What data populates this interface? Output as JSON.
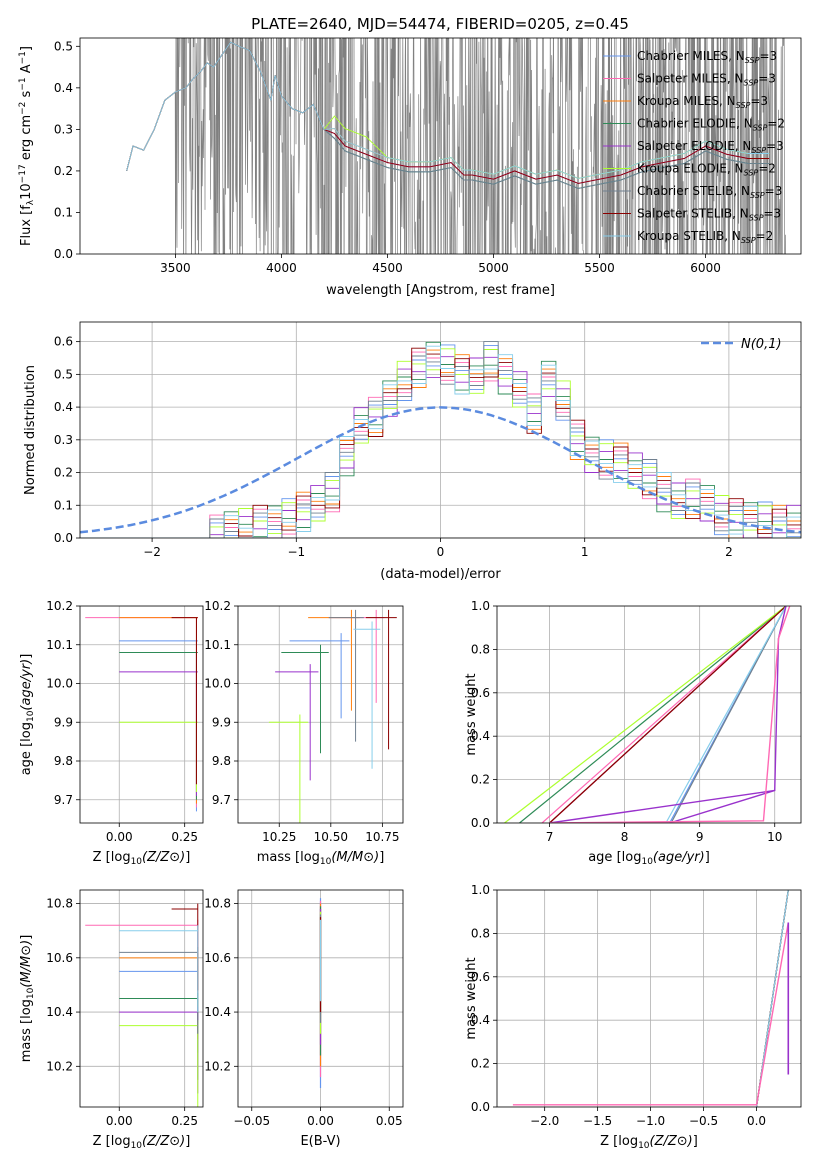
{
  "title": "PLATE=2640, MJD=54474, FIBERID=0205, z=0.45",
  "models": [
    {
      "name": "Chabrier MILES, N_SSP=3",
      "label_main": "Chabrier MILES, N",
      "label_sub": "SSP",
      "label_tail": "=3",
      "color": "#6495ED"
    },
    {
      "name": "Salpeter MILES, N_SSP=3",
      "label_main": "Salpeter MILES, N",
      "label_sub": "SSP",
      "label_tail": "=3",
      "color": "#FF69B4"
    },
    {
      "name": "Kroupa MILES, N_SSP=3",
      "label_main": "Kroupa MILES, N",
      "label_sub": "SSP",
      "label_tail": "=3",
      "color": "#FF7F0E"
    },
    {
      "name": "Chabrier ELODIE, N_SSP=2",
      "label_main": "Chabrier ELODIE, N",
      "label_sub": "SSP",
      "label_tail": "=2",
      "color": "#2E8B57"
    },
    {
      "name": "Salpeter ELODIE, N_SSP=3",
      "label_main": "Salpeter ELODIE, N",
      "label_sub": "SSP",
      "label_tail": "=3",
      "color": "#9932CC"
    },
    {
      "name": "Kroupa ELODIE, N_SSP=2",
      "label_main": "Kroupa ELODIE, N",
      "label_sub": "SSP",
      "label_tail": "=2",
      "color": "#ADFF2F"
    },
    {
      "name": "Chabrier STELIB, N_SSP=3",
      "label_main": "Chabrier STELIB, N",
      "label_sub": "SSP",
      "label_tail": "=3",
      "color": "#708090"
    },
    {
      "name": "Salpeter STELIB, N_SSP=3",
      "label_main": "Salpeter STELIB, N",
      "label_sub": "SSP",
      "label_tail": "=3",
      "color": "#8B0000"
    },
    {
      "name": "Kroupa STELIB, N_SSP=2",
      "label_main": "Kroupa STELIB, N",
      "label_sub": "SSP",
      "label_tail": "=2",
      "color": "#87CEEB"
    }
  ],
  "chart_data": [
    {
      "type": "line",
      "id": "spectrum",
      "xlabel": "wavelength [Angstrom, rest frame]",
      "ylabel": "Flux [f_λ 10^-17 erg cm^-2 s^-1 A^-1]",
      "ylabel_parts": {
        "a": "Flux [f",
        "b": "λ",
        "c": "10",
        "d": "−17",
        "e": " erg cm",
        "f": "−2",
        "g": " s",
        "h": "−1",
        "i": " A",
        "j": "−1",
        "k": "]"
      },
      "xlim": [
        3050,
        6450
      ],
      "ylim": [
        0,
        0.52
      ],
      "xticks": [
        3500,
        4000,
        4500,
        5000,
        5500,
        6000
      ],
      "yticks": [
        0.0,
        0.1,
        0.2,
        0.3,
        0.4,
        0.5
      ],
      "data_color": "#808080",
      "data_x_range": [
        3270,
        6380
      ],
      "model_points": {
        "x": [
          3270,
          3300,
          3350,
          3400,
          3450,
          3500,
          3550,
          3580,
          3620,
          3650,
          3680,
          3720,
          3760,
          3800,
          3850,
          3900,
          3950,
          3970,
          4000,
          4050,
          4100,
          4150,
          4200,
          4250,
          4300,
          4350,
          4400,
          4500,
          4600,
          4700,
          4800,
          4860,
          4900,
          5000,
          5100,
          5200,
          5300,
          5400,
          5500,
          5600,
          5700,
          5800,
          5900,
          6000,
          6100,
          6200,
          6300
        ],
        "y": [
          0.2,
          0.26,
          0.25,
          0.3,
          0.37,
          0.39,
          0.4,
          0.42,
          0.44,
          0.46,
          0.45,
          0.48,
          0.51,
          0.5,
          0.49,
          0.44,
          0.37,
          0.43,
          0.38,
          0.35,
          0.34,
          0.36,
          0.3,
          0.29,
          0.26,
          0.25,
          0.24,
          0.22,
          0.21,
          0.21,
          0.22,
          0.19,
          0.19,
          0.18,
          0.2,
          0.18,
          0.19,
          0.17,
          0.18,
          0.19,
          0.21,
          0.22,
          0.23,
          0.26,
          0.24,
          0.23,
          0.23
        ]
      },
      "legend": "top-right"
    },
    {
      "type": "histogram",
      "id": "residuals",
      "xlabel": "(data-model)/error",
      "ylabel": "Normed distribution",
      "xlim": [
        -2.5,
        2.5
      ],
      "ylim": [
        0,
        0.66
      ],
      "xticks": [
        -2,
        -1,
        0,
        1,
        2
      ],
      "yticks": [
        0.0,
        0.1,
        0.2,
        0.3,
        0.4,
        0.5,
        0.6
      ],
      "bin_edges_start": -2.5,
      "bin_width": 0.1,
      "base_values": [
        0,
        0,
        0,
        0,
        0,
        0,
        0,
        0,
        0,
        0.01,
        0.02,
        0.03,
        0.04,
        0.05,
        0.06,
        0.08,
        0.1,
        0.14,
        0.25,
        0.35,
        0.37,
        0.42,
        0.48,
        0.52,
        0.55,
        0.53,
        0.5,
        0.49,
        0.54,
        0.5,
        0.46,
        0.38,
        0.48,
        0.42,
        0.3,
        0.26,
        0.24,
        0.23,
        0.2,
        0.18,
        0.14,
        0.12,
        0.12,
        0.1,
        0.07,
        0.06,
        0.06,
        0.05,
        0.04,
        0.04
      ],
      "gaussian_label": "N(0,1)",
      "gaussian_color": "#5B8BDF",
      "legend": "top-right"
    },
    {
      "type": "errorbar",
      "id": "age_vs_Z",
      "xlabel": "Z [log10(Z/Z⊙)]",
      "ylabel": "age [log10(age/yr)]",
      "xlim": [
        -0.15,
        0.32
      ],
      "ylim": [
        9.64,
        10.2
      ],
      "xticks": [
        0.0,
        0.25
      ],
      "yticks": [
        9.7,
        9.8,
        9.9,
        10.0,
        10.1,
        10.2
      ],
      "points": [
        {
          "model": 0,
          "x": 0.3,
          "y": 10.11,
          "xlo": 0.0
        },
        {
          "model": 1,
          "x": 0.3,
          "y": 10.17,
          "xlo": -0.13
        },
        {
          "model": 2,
          "x": 0.3,
          "y": 10.17,
          "xlo": 0.0
        },
        {
          "model": 3,
          "x": 0.3,
          "y": 10.08,
          "xlo": 0.0
        },
        {
          "model": 4,
          "x": 0.3,
          "y": 10.03,
          "xlo": 0.0
        },
        {
          "model": 5,
          "x": 0.3,
          "y": 9.9,
          "xlo": 0.0
        },
        {
          "model": 7,
          "x": 0.3,
          "y": 10.17,
          "xlo": 0.2
        }
      ]
    },
    {
      "type": "errorbar",
      "id": "age_vs_mass",
      "xlabel": "mass [log10(M/M⊙)]",
      "ylabel": "",
      "xlim": [
        10.05,
        10.85
      ],
      "ylim": [
        9.64,
        10.2
      ],
      "xticks": [
        10.25,
        10.5,
        10.75
      ],
      "xticklabels": [
        "10.25",
        "10.50",
        "10.75"
      ],
      "yticks": [
        9.7,
        9.8,
        9.9,
        10.0,
        10.1,
        10.2
      ]
    },
    {
      "type": "line",
      "id": "weight_vs_age",
      "xlabel": "age [log10(age/yr)]",
      "ylabel": "mass weight",
      "xlim": [
        6.3,
        10.35
      ],
      "ylim": [
        0,
        1
      ],
      "xticks": [
        7,
        8,
        9,
        10
      ],
      "yticks": [
        0.0,
        0.2,
        0.4,
        0.6,
        0.8,
        1.0
      ]
    },
    {
      "type": "errorbar",
      "id": "mass_vs_Z",
      "xlabel": "Z [log10(Z/Z⊙)]",
      "ylabel": "mass [log10(M/M⊙)]",
      "xlim": [
        -0.15,
        0.32
      ],
      "ylim": [
        10.05,
        10.85
      ],
      "xticks": [
        0.0,
        0.25
      ],
      "yticks": [
        10.2,
        10.4,
        10.6,
        10.8
      ]
    },
    {
      "type": "errorbar",
      "id": "mass_vs_EBV",
      "xlabel": "E(B-V)",
      "ylabel": "",
      "xlim": [
        -0.06,
        0.06
      ],
      "ylim": [
        10.05,
        10.85
      ],
      "xticks": [
        -0.05,
        0.0,
        0.05
      ],
      "xticklabels": [
        "−0.05",
        "0.00",
        "0.05"
      ],
      "yticks": [
        10.2,
        10.4,
        10.6,
        10.8
      ]
    },
    {
      "type": "line",
      "id": "weight_vs_Z",
      "xlabel": "Z [log10(Z/Z⊙)]",
      "ylabel": "mass weight",
      "xlim": [
        -2.45,
        0.42
      ],
      "ylim": [
        0,
        1
      ],
      "xticks": [
        -2.0,
        -1.5,
        -1.0,
        -0.5,
        0.0
      ],
      "xticklabels": [
        "−2.0",
        "−1.5",
        "−1.0",
        "−0.5",
        "0.0"
      ],
      "yticks": [
        0.0,
        0.2,
        0.4,
        0.6,
        0.8,
        1.0
      ]
    }
  ]
}
